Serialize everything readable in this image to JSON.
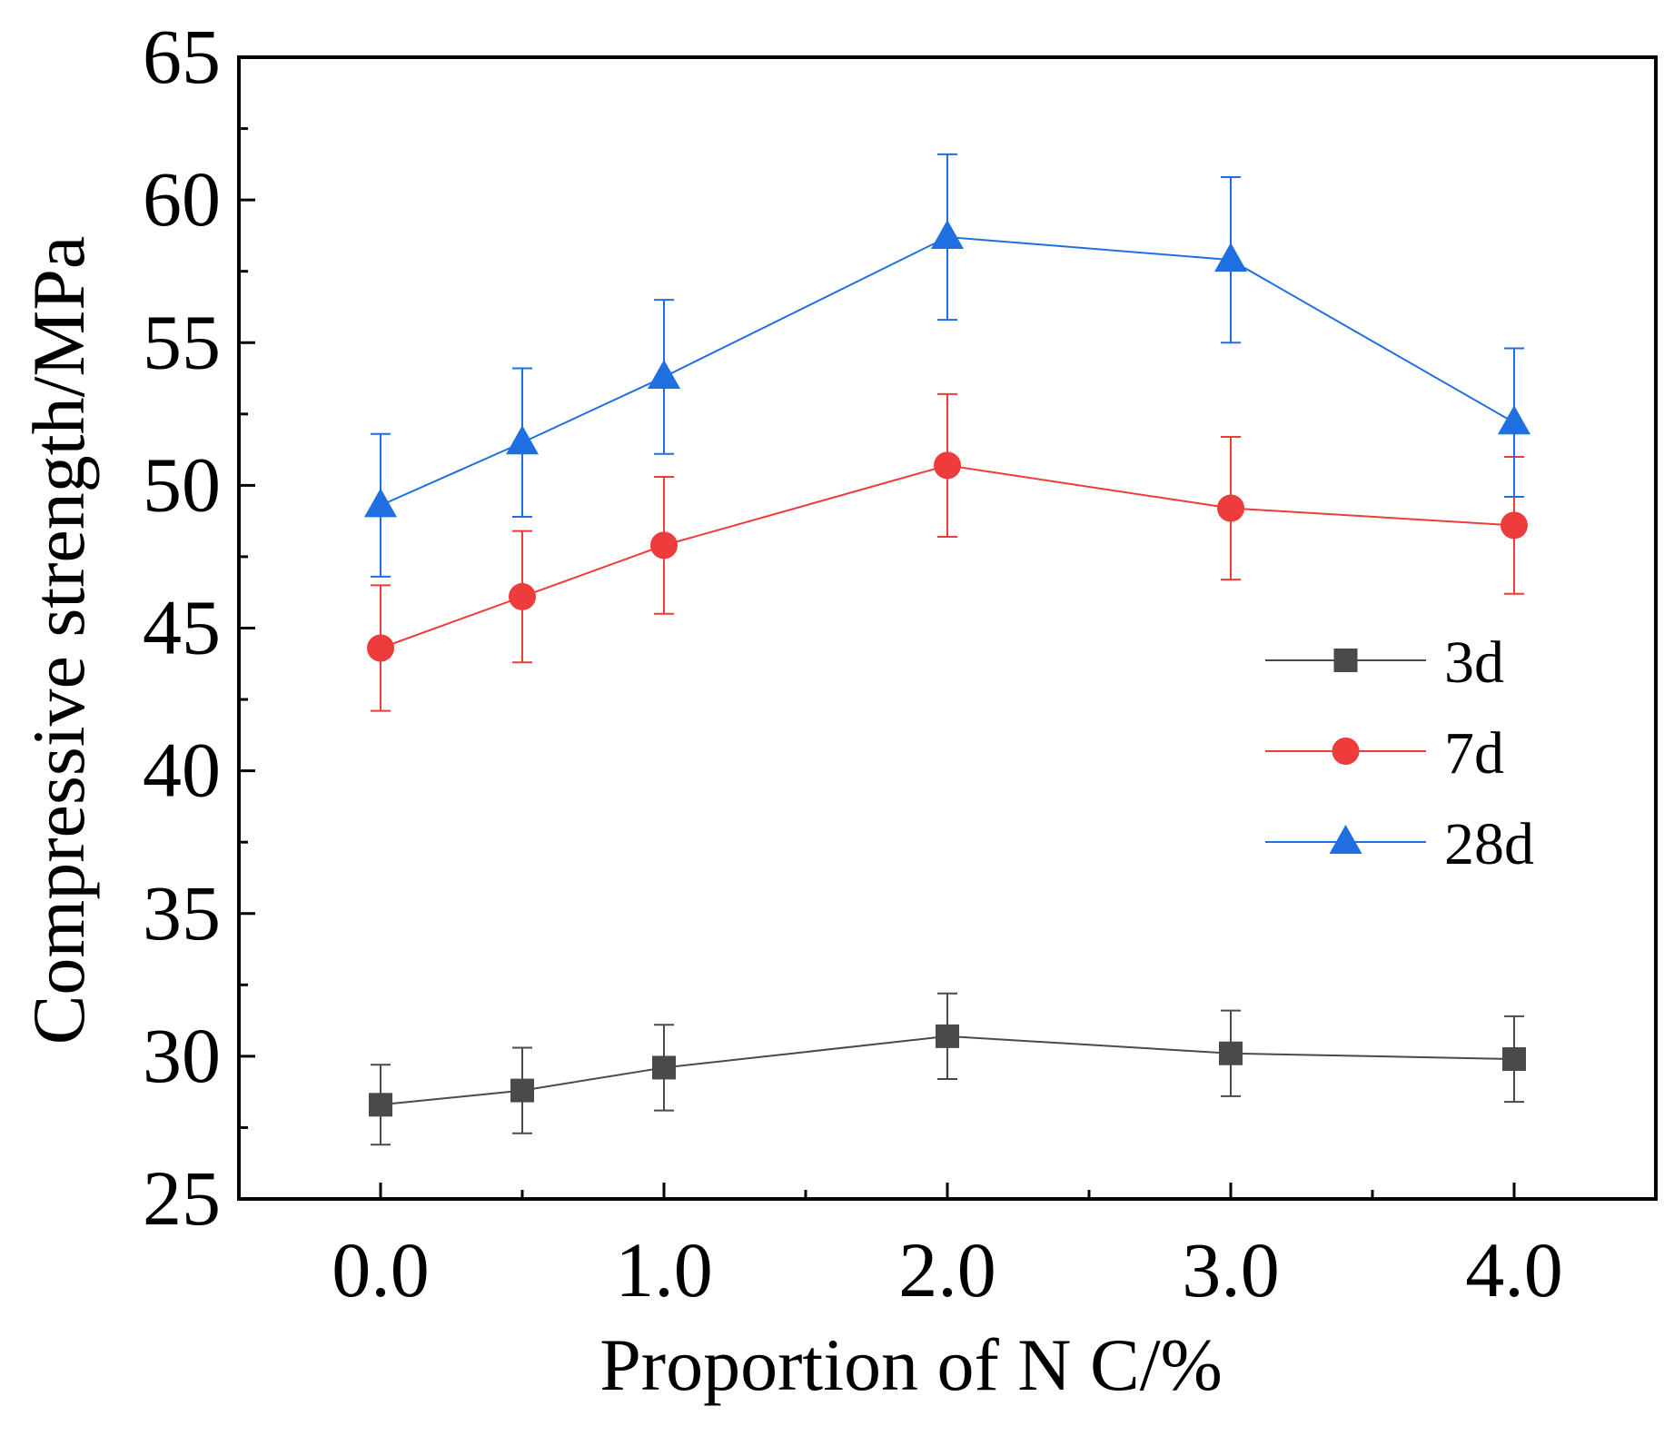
{
  "chart_data": {
    "type": "line",
    "xlabel": "Proportion of N C/%",
    "ylabel": "Compressive strength/MPa",
    "xlim": [
      -0.5,
      4.5
    ],
    "ylim": [
      25,
      65
    ],
    "x_ticks": [
      "0.0",
      "1.0",
      "2.0",
      "3.0",
      "4.0"
    ],
    "x_tick_values": [
      0,
      1,
      2,
      3,
      4
    ],
    "x_minor_ticks": [
      0.5,
      1.5,
      2.5,
      3.5
    ],
    "y_ticks": [
      "25",
      "30",
      "35",
      "40",
      "45",
      "50",
      "55",
      "60",
      "65"
    ],
    "y_tick_values": [
      25,
      30,
      35,
      40,
      45,
      50,
      55,
      60,
      65
    ],
    "y_minor_ticks": [
      27.5,
      32.5,
      37.5,
      42.5,
      47.5,
      52.5,
      57.5,
      62.5
    ],
    "x": [
      0,
      0.5,
      1,
      2,
      3,
      4
    ],
    "legend_position": "right-middle",
    "series": [
      {
        "name": "3d",
        "marker": "square",
        "color": "#4a4a4a",
        "values": [
          28.3,
          28.8,
          29.6,
          30.7,
          30.1,
          29.9
        ],
        "errors": [
          1.4,
          1.5,
          1.5,
          1.5,
          1.5,
          1.5
        ]
      },
      {
        "name": "7d",
        "marker": "circle",
        "color": "#ee3b3b",
        "values": [
          44.3,
          46.1,
          47.9,
          50.7,
          49.2,
          48.6
        ],
        "errors": [
          2.2,
          2.3,
          2.4,
          2.5,
          2.5,
          2.4
        ]
      },
      {
        "name": "28d",
        "marker": "triangle",
        "color": "#1f6fe0",
        "values": [
          49.3,
          51.5,
          53.8,
          58.7,
          57.9,
          52.2
        ],
        "errors": [
          2.5,
          2.6,
          2.7,
          2.9,
          2.9,
          2.6
        ]
      }
    ]
  }
}
